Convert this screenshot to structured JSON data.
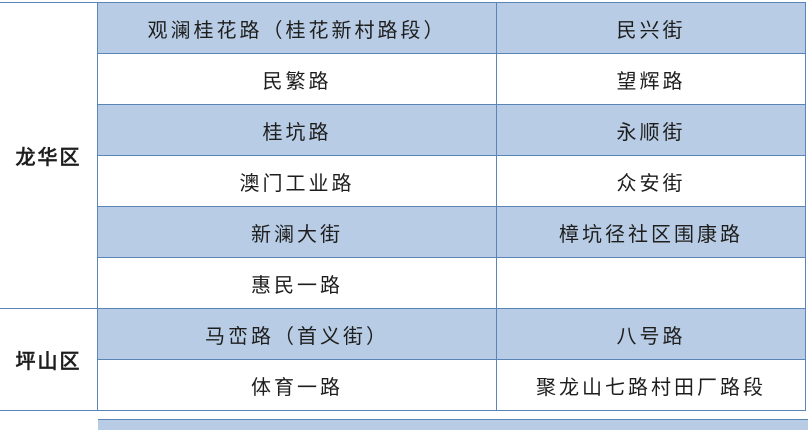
{
  "districts": [
    {
      "name": "龙华区",
      "rows": [
        [
          "观澜桂花路（桂花新村路段）",
          "民兴街"
        ],
        [
          "民繁路",
          "望辉路"
        ],
        [
          "桂坑路",
          "永顺街"
        ],
        [
          "澳门工业路",
          "众安街"
        ],
        [
          "新澜大街",
          "樟坑径社区围康路"
        ],
        [
          "惠民一路",
          ""
        ]
      ]
    },
    {
      "name": "坪山区",
      "rows": [
        [
          "马峦路（首义街）",
          "八号路"
        ],
        [
          "体育一路",
          "聚龙山七路村田厂路段"
        ]
      ]
    }
  ],
  "colors": {
    "row_fill": "#b8cde5",
    "border": "#5b84b8"
  }
}
